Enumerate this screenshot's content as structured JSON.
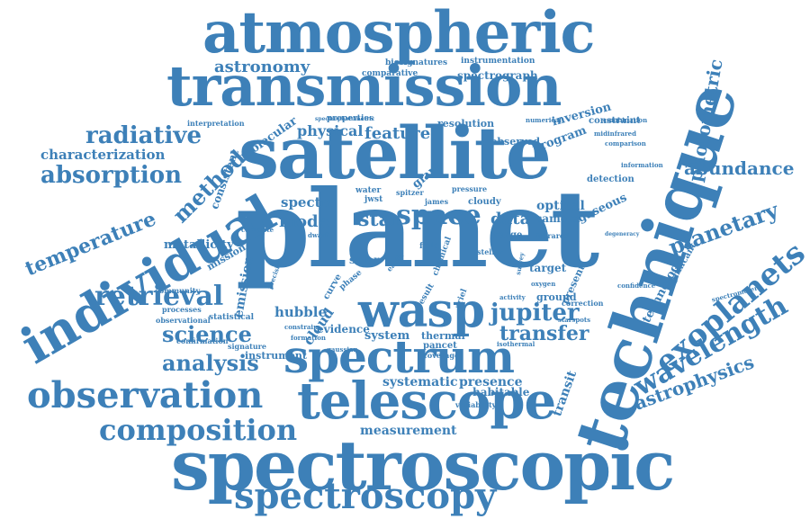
{
  "color": "#3d80b8",
  "words": [
    {
      "text": "planet"
    },
    {
      "text": "satellite"
    },
    {
      "text": "technique"
    },
    {
      "text": "spectroscopic"
    },
    {
      "text": "atmospheric"
    },
    {
      "text": "transmission"
    },
    {
      "text": "individual"
    },
    {
      "text": "telescope"
    },
    {
      "text": "spectrum"
    },
    {
      "text": "wasp"
    },
    {
      "text": "observation"
    },
    {
      "text": "spectroscopy"
    },
    {
      "text": "exoplanets"
    },
    {
      "text": "composition"
    },
    {
      "text": "wavelength"
    },
    {
      "text": "retrieval"
    },
    {
      "text": "radiative"
    },
    {
      "text": "absorption"
    },
    {
      "text": "temperature"
    },
    {
      "text": "method"
    },
    {
      "text": "space"
    },
    {
      "text": "jupiter"
    },
    {
      "text": "science"
    },
    {
      "text": "analysis"
    },
    {
      "text": "transfer"
    },
    {
      "text": "planetary"
    },
    {
      "text": "abundance"
    },
    {
      "text": "photometric"
    },
    {
      "text": "astrophysics"
    },
    {
      "text": "astronomy"
    },
    {
      "text": "characterization"
    },
    {
      "text": "feature"
    },
    {
      "text": "physical"
    },
    {
      "text": "model"
    },
    {
      "text": "data"
    },
    {
      "text": "star"
    },
    {
      "text": "optical"
    },
    {
      "text": "spectra"
    },
    {
      "text": "hubble"
    },
    {
      "text": "cloud"
    },
    {
      "text": "systematic"
    },
    {
      "text": "presence"
    },
    {
      "text": "measurement"
    },
    {
      "text": "transit"
    },
    {
      "text": "technology"
    },
    {
      "text": "emission"
    },
    {
      "text": "metallicity"
    },
    {
      "text": "molecular"
    },
    {
      "text": "consistent"
    },
    {
      "text": "giant"
    },
    {
      "text": "camera"
    },
    {
      "text": "gaseous"
    },
    {
      "text": "target"
    },
    {
      "text": "ground"
    },
    {
      "text": "system"
    },
    {
      "text": "habitable"
    },
    {
      "text": "instrument"
    },
    {
      "text": "evidence"
    },
    {
      "text": "solar"
    },
    {
      "text": "spectrograph"
    },
    {
      "text": "comparative"
    },
    {
      "text": "biosignatures"
    },
    {
      "text": "instrumentation"
    },
    {
      "text": "resolution"
    },
    {
      "text": "constraint"
    },
    {
      "text": "program"
    },
    {
      "text": "inversion"
    },
    {
      "text": "observed"
    },
    {
      "text": "detection"
    },
    {
      "text": "mission"
    },
    {
      "text": "statistical"
    },
    {
      "text": "thermal"
    },
    {
      "text": "pancet"
    },
    {
      "text": "present"
    },
    {
      "text": "range"
    },
    {
      "text": "jwst"
    },
    {
      "text": "water"
    },
    {
      "text": "curve"
    },
    {
      "text": "significant"
    },
    {
      "text": "interpretation"
    },
    {
      "text": "properties"
    },
    {
      "text": "observational"
    },
    {
      "text": "processes"
    },
    {
      "text": "community"
    },
    {
      "text": "confirmation"
    },
    {
      "text": "signature"
    },
    {
      "text": "variability"
    },
    {
      "text": "coverage"
    },
    {
      "text": "chemical"
    },
    {
      "text": "numerical"
    },
    {
      "text": "midinfrared"
    },
    {
      "text": "comparison"
    },
    {
      "text": "combination"
    },
    {
      "text": "information"
    },
    {
      "text": "confidence"
    },
    {
      "text": "spectrometer"
    },
    {
      "text": "infrared"
    },
    {
      "text": "stellar"
    },
    {
      "text": "correction"
    },
    {
      "text": "ariel"
    },
    {
      "text": "field"
    },
    {
      "text": "phase"
    },
    {
      "text": "result"
    },
    {
      "text": "cloudy"
    },
    {
      "text": "pressure"
    },
    {
      "text": "james"
    },
    {
      "text": "spitzer"
    },
    {
      "text": "dwarf"
    },
    {
      "text": "earth"
    },
    {
      "text": "constrain"
    },
    {
      "text": "formation"
    },
    {
      "text": "gaussian"
    },
    {
      "text": "isothermal"
    },
    {
      "text": "activity"
    },
    {
      "text": "oxygen"
    },
    {
      "text": "starspots"
    },
    {
      "text": "precision"
    },
    {
      "text": "complete"
    },
    {
      "text": "spectrophotometric"
    },
    {
      "text": "degeneracy"
    },
    {
      "text": "survey"
    }
  ]
}
